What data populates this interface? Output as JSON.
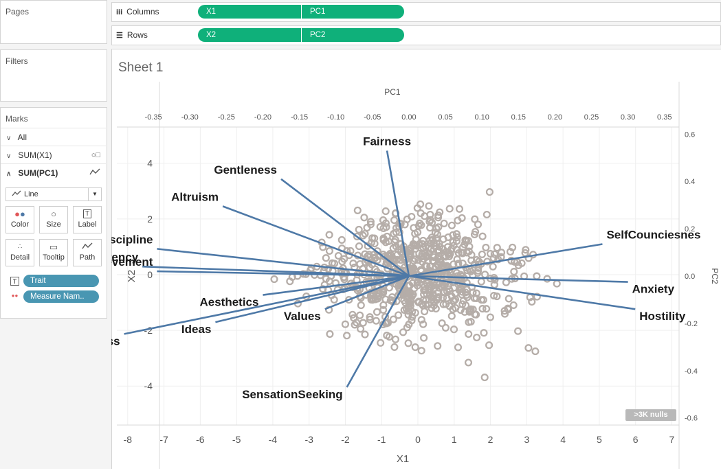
{
  "left": {
    "pages_title": "Pages",
    "filters_title": "Filters",
    "marks_title": "Marks",
    "marks_rows": [
      {
        "label": "All",
        "icon": ""
      },
      {
        "label": "SUM(X1)",
        "icon": "shapes-icon"
      },
      {
        "label": "SUM(PC1)",
        "icon": "line-icon"
      }
    ],
    "mark_type": "Line",
    "buttons": [
      "Color",
      "Size",
      "Label",
      "Detail",
      "Tooltip",
      "Path"
    ],
    "fields": [
      "Trait",
      "Measure Nam.."
    ]
  },
  "shelves": {
    "columns_label": "Columns",
    "rows_label": "Rows",
    "columns_pills": [
      "X1",
      "PC1"
    ],
    "rows_pills": [
      "X2",
      "PC2"
    ]
  },
  "sheet_title": "Sheet 1",
  "nulls_badge": ">3K nulls",
  "chart_data": {
    "type": "scatter",
    "title": "",
    "xlabel": "X1",
    "ylabel": "X2",
    "top_xlabel": "PC1",
    "right_ylabel": "PC2",
    "xlim": [
      -8.3,
      7.2
    ],
    "ylim": [
      -5.4,
      5.3
    ],
    "x_ticks": [
      -8,
      -7,
      -6,
      -5,
      -4,
      -3,
      -2,
      -1,
      0,
      1,
      2,
      3,
      4,
      5,
      6,
      7
    ],
    "y_ticks": [
      4,
      2,
      0,
      -2,
      -4
    ],
    "pc1_ticks": [
      "-0.35",
      "-0.30",
      "-0.25",
      "-0.20",
      "-0.15",
      "-0.10",
      "-0.05",
      "0.00",
      "0.05",
      "0.10",
      "0.15",
      "0.20",
      "0.25",
      "0.30",
      "0.35"
    ],
    "pc1_lim": [
      -0.4,
      0.37
    ],
    "pc2_ticks": [
      "0.6",
      "0.4",
      "0.2",
      "0.0",
      "-0.2",
      "-0.4",
      "-0.6"
    ],
    "pc2_lim": [
      -0.63,
      0.63
    ],
    "point_color": "#b5ada8",
    "line_color": "#4e79a7",
    "grid": true,
    "series": [
      {
        "name": "Fairness",
        "pc1": -0.03,
        "pc2": 0.53
      },
      {
        "name": "Gentleness",
        "pc1": -0.175,
        "pc2": 0.41
      },
      {
        "name": "Altruism",
        "pc1": -0.255,
        "pc2": 0.295
      },
      {
        "name": "Discipline",
        "pc1": -0.345,
        "pc2": 0.115
      },
      {
        "name": "Competency",
        "pc1": -0.365,
        "pc2": 0.04
      },
      {
        "name": "Achievement",
        "pc1": -0.345,
        "pc2": 0.02
      },
      {
        "name": "Aesthetics",
        "pc1": -0.2,
        "pc2": -0.08
      },
      {
        "name": "Ideas",
        "pc1": -0.265,
        "pc2": -0.195
      },
      {
        "name": "Assertiveness",
        "pc1": -0.39,
        "pc2": -0.245
      },
      {
        "name": "Values",
        "pc1": -0.115,
        "pc2": -0.14
      },
      {
        "name": "SensationSeeking",
        "pc1": -0.085,
        "pc2": -0.47
      },
      {
        "name": "SelfCounciesnes",
        "pc1": 0.265,
        "pc2": 0.135
      },
      {
        "name": "Anxiety",
        "pc1": 0.3,
        "pc2": -0.025
      },
      {
        "name": "Hostility",
        "pc1": 0.31,
        "pc2": -0.14
      }
    ]
  }
}
